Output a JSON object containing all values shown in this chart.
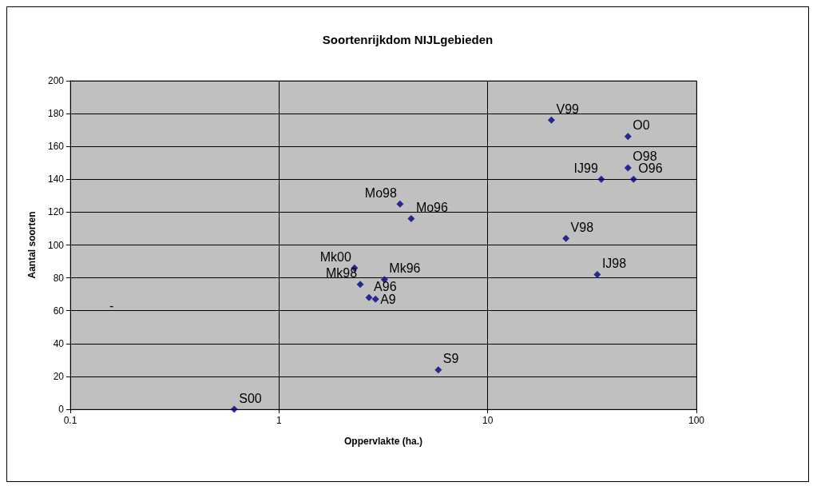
{
  "chart_data": {
    "type": "scatter",
    "title": "Soortenrijkdom NIJLgebieden",
    "xlabel": "Oppervlakte (ha.)",
    "ylabel": "Aantal soorten",
    "x": [
      0.61,
      5.8,
      2.9,
      2.7,
      2.45,
      3.2,
      2.3,
      4.3,
      3.8,
      23.7,
      33.5,
      35,
      50,
      47,
      47,
      20.2
    ],
    "values": [
      0,
      24,
      67,
      68,
      76,
      79,
      86,
      116,
      125,
      104,
      82,
      140,
      140,
      147,
      166,
      176
    ],
    "color": "#000080",
    "marker": "diamond",
    "log": "x",
    "grid": true,
    "xlim": [
      0.1,
      100
    ],
    "xticks": [
      0.1,
      1,
      10,
      100
    ],
    "ylim": [
      0,
      200
    ],
    "yticks": [
      0,
      20,
      40,
      60,
      80,
      100,
      120,
      140,
      160,
      180,
      200
    ],
    "annotations": [
      {
        "text": "S00",
        "x": 0.61,
        "y": 0
      },
      {
        "text": "S9",
        "x": 5.8,
        "y": 24
      },
      {
        "text": "A9",
        "x": 2.9,
        "y": 67
      },
      {
        "text": "A96",
        "x": 2.7,
        "y": 68
      },
      {
        "text": "Mk98",
        "x": 2.45,
        "y": 76
      },
      {
        "text": "Mk96",
        "x": 3.2,
        "y": 79
      },
      {
        "text": "Mk00",
        "x": 2.3,
        "y": 86
      },
      {
        "text": "Mo96",
        "x": 4.3,
        "y": 116
      },
      {
        "text": "Mo98",
        "x": 3.8,
        "y": 125
      },
      {
        "text": "V98",
        "x": 23.7,
        "y": 104
      },
      {
        "text": "IJ98",
        "x": 33.5,
        "y": 82
      },
      {
        "text": "IJ99",
        "x": 35,
        "y": 140
      },
      {
        "text": "O96",
        "x": 50,
        "y": 140
      },
      {
        "text": "O98",
        "x": 47,
        "y": 147
      },
      {
        "text": "O0",
        "x": 47,
        "y": 166
      },
      {
        "text": "V99",
        "x": 20.2,
        "y": 176
      },
      "-"
    ]
  }
}
